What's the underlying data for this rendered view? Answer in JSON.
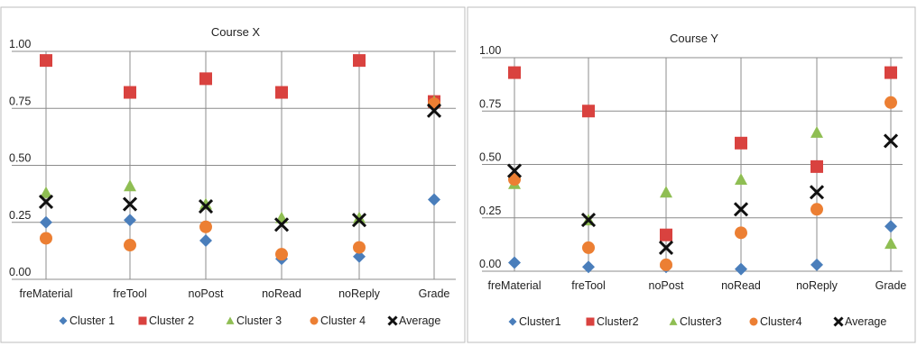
{
  "colors": {
    "Cluster 1": "#4a7ebb",
    "Cluster 2": "#d9423f",
    "Cluster 3": "#8fbe53",
    "Cluster 4": "#ec7f33",
    "Average": "#111111"
  },
  "chart_data": [
    {
      "type": "scatter",
      "title": "Course X",
      "categories": [
        "freMaterial",
        "freTool",
        "noPost",
        "noRead",
        "noReply",
        "Grade"
      ],
      "ylim": [
        0,
        1
      ],
      "yticks": [
        "0.00",
        "0.25",
        "0.50",
        "0.75",
        "1.00"
      ],
      "grid": true,
      "legend_position": "bottom",
      "series": [
        {
          "name": "Cluster 1",
          "marker": "diamond",
          "values": [
            0.25,
            0.26,
            0.17,
            0.09,
            0.1,
            0.35
          ]
        },
        {
          "name": "Cluster 2",
          "marker": "square",
          "values": [
            0.96,
            0.82,
            0.88,
            0.82,
            0.96,
            0.78
          ]
        },
        {
          "name": "Cluster 3",
          "marker": "triangle",
          "values": [
            0.38,
            0.41,
            0.33,
            0.27,
            0.27,
            0.78
          ]
        },
        {
          "name": "Cluster 4",
          "marker": "circle",
          "values": [
            0.18,
            0.15,
            0.23,
            0.11,
            0.14,
            0.77
          ]
        },
        {
          "name": "Average",
          "marker": "x",
          "values": [
            0.34,
            0.33,
            0.32,
            0.24,
            0.26,
            0.74
          ]
        }
      ]
    },
    {
      "type": "scatter",
      "title": "Course Y",
      "categories": [
        "freMaterial",
        "freTool",
        "noPost",
        "noRead",
        "noReply",
        "Grade"
      ],
      "ylim": [
        0,
        1
      ],
      "yticks": [
        "0.00",
        "0.25",
        "0.50",
        "0.75",
        "1.00"
      ],
      "grid": true,
      "legend_position": "bottom",
      "series": [
        {
          "name": "Cluster1",
          "marker": "diamond",
          "values": [
            0.04,
            0.02,
            0.02,
            0.01,
            0.03,
            0.21
          ]
        },
        {
          "name": "Cluster2",
          "marker": "square",
          "values": [
            0.93,
            0.75,
            0.17,
            0.6,
            0.49,
            0.93
          ]
        },
        {
          "name": "Cluster3",
          "marker": "triangle",
          "values": [
            0.41,
            0.24,
            0.37,
            0.43,
            0.65,
            0.13
          ]
        },
        {
          "name": "Cluster4",
          "marker": "circle",
          "values": [
            0.43,
            0.11,
            0.03,
            0.18,
            0.29,
            0.79
          ]
        },
        {
          "name": "Average",
          "marker": "x",
          "values": [
            0.47,
            0.24,
            0.11,
            0.29,
            0.37,
            0.61
          ]
        }
      ]
    }
  ]
}
